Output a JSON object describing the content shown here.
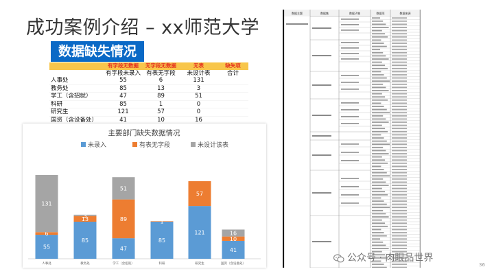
{
  "slide": {
    "title": "成功案例介绍 – xx师范大学",
    "subtitle": "数据缺失情况",
    "page_number": "36",
    "watermark": "公众号 · 肉眼品世界"
  },
  "missing_table": {
    "top_headers": [
      "有字段无数据",
      "无字段无数据",
      "无表",
      "缺失项"
    ],
    "sub_headers": [
      "有字段未录入",
      "有表无字段",
      "未设计表",
      "合计"
    ],
    "rows": [
      {
        "dept": "人事处",
        "values": [
          "55",
          "6",
          "131",
          ""
        ]
      },
      {
        "dept": "教务处",
        "values": [
          "85",
          "13",
          "3",
          ""
        ]
      },
      {
        "dept": "学工（含招就）",
        "values": [
          "47",
          "89",
          "51",
          ""
        ]
      },
      {
        "dept": "科研",
        "values": [
          "85",
          "1",
          "0",
          ""
        ]
      },
      {
        "dept": "研究生",
        "values": [
          "121",
          "57",
          "0",
          ""
        ]
      },
      {
        "dept": "国资（含设备处）",
        "values": [
          "41",
          "10",
          "16",
          ""
        ]
      }
    ]
  },
  "chart_data": {
    "type": "bar",
    "stacked": true,
    "title": "主要部门缺失数据情况",
    "categories": [
      "人事处",
      "教务处",
      "学工（含招就）",
      "科研",
      "研究生",
      "国资（含设备处）"
    ],
    "series": [
      {
        "name": "未录入",
        "values": [
          55,
          85,
          47,
          85,
          121,
          41
        ],
        "color": "#5b9bd5"
      },
      {
        "name": "有表无字段",
        "values": [
          6,
          13,
          89,
          1,
          57,
          10
        ],
        "color": "#ed7d31"
      },
      {
        "name": "未设计该表",
        "values": [
          131,
          3,
          51,
          0,
          0,
          16
        ],
        "color": "#a5a5a5"
      }
    ],
    "legend_position": "top",
    "grid": false
  },
  "spec_table": {
    "headers": [
      "数据主题",
      "数据集",
      "数据子集",
      "数据项",
      "数据来源"
    ]
  }
}
